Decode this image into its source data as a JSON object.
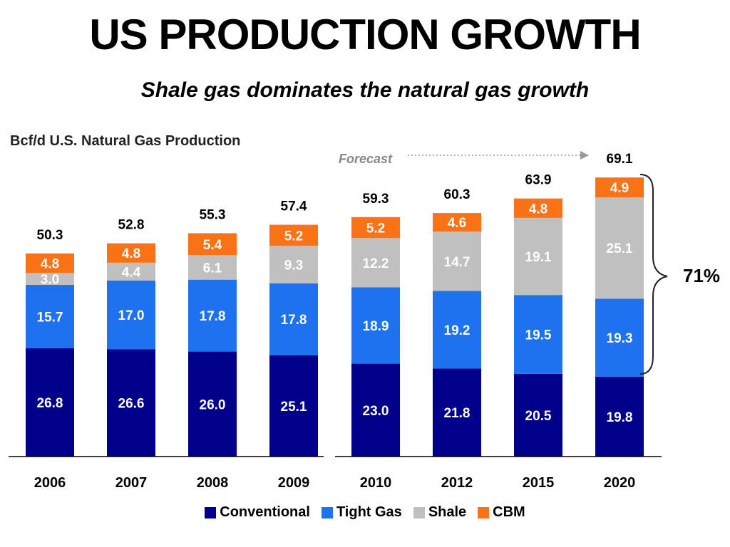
{
  "title": "US PRODUCTION GROWTH",
  "subtitle": "Shale gas dominates the natural gas growth",
  "chart_data": {
    "type": "bar",
    "stacked": true,
    "title": "Bcf/d U.S. Natural Gas Production",
    "categories": [
      "2006",
      "2007",
      "2008",
      "2009",
      "2010",
      "2012",
      "2015",
      "2020"
    ],
    "totals": [
      "50.3",
      "52.8",
      "55.3",
      "57.4",
      "59.3",
      "60.3",
      "63.9",
      "69.1"
    ],
    "series": [
      {
        "name": "Conventional",
        "color": "#00008b",
        "values": [
          26.8,
          26.6,
          26.0,
          25.1,
          23.0,
          21.8,
          20.5,
          19.8
        ]
      },
      {
        "name": "Tight Gas",
        "color": "#1e72f0",
        "values": [
          15.7,
          17.0,
          17.8,
          17.8,
          18.9,
          19.2,
          19.5,
          19.3
        ]
      },
      {
        "name": "Shale",
        "color": "#c0c0c0",
        "values": [
          3.0,
          4.4,
          6.1,
          9.3,
          12.2,
          14.7,
          19.1,
          25.1
        ]
      },
      {
        "name": "CBM",
        "color": "#f97316",
        "values": [
          4.8,
          4.8,
          5.4,
          5.2,
          5.2,
          4.6,
          4.8,
          4.9
        ]
      }
    ],
    "forecast_label": "Forecast",
    "forecast_start_category": "2010",
    "bracket_label": "71%",
    "ylim": [
      0,
      70
    ],
    "grid": false,
    "legend_position": "bottom"
  }
}
